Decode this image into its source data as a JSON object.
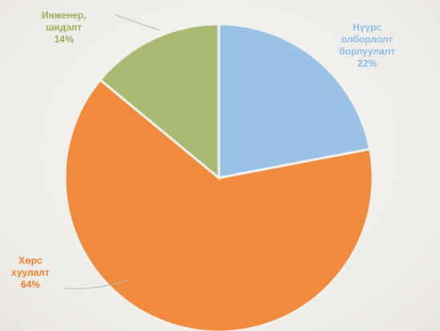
{
  "chart_data": {
    "type": "pie",
    "title": "",
    "slices": [
      {
        "label": [
          "Нүүрс",
          "олборлолт",
          "борлуулалт"
        ],
        "value": 22,
        "percent_label": "22%",
        "color": "#99c2e6"
      },
      {
        "label": [
          "Хөрс",
          "хуулалт"
        ],
        "value": 64,
        "percent_label": "64%",
        "color": "#f08a3c"
      },
      {
        "label": [
          "Инженер,",
          "шидэлт"
        ],
        "value": 14,
        "percent_label": "14%",
        "color": "#a9ba72"
      }
    ],
    "start_angle_deg": 0,
    "direction": "clockwise",
    "label_colors": [
      "#8bbbe6",
      "#f07f26",
      "#9aaa57"
    ]
  }
}
